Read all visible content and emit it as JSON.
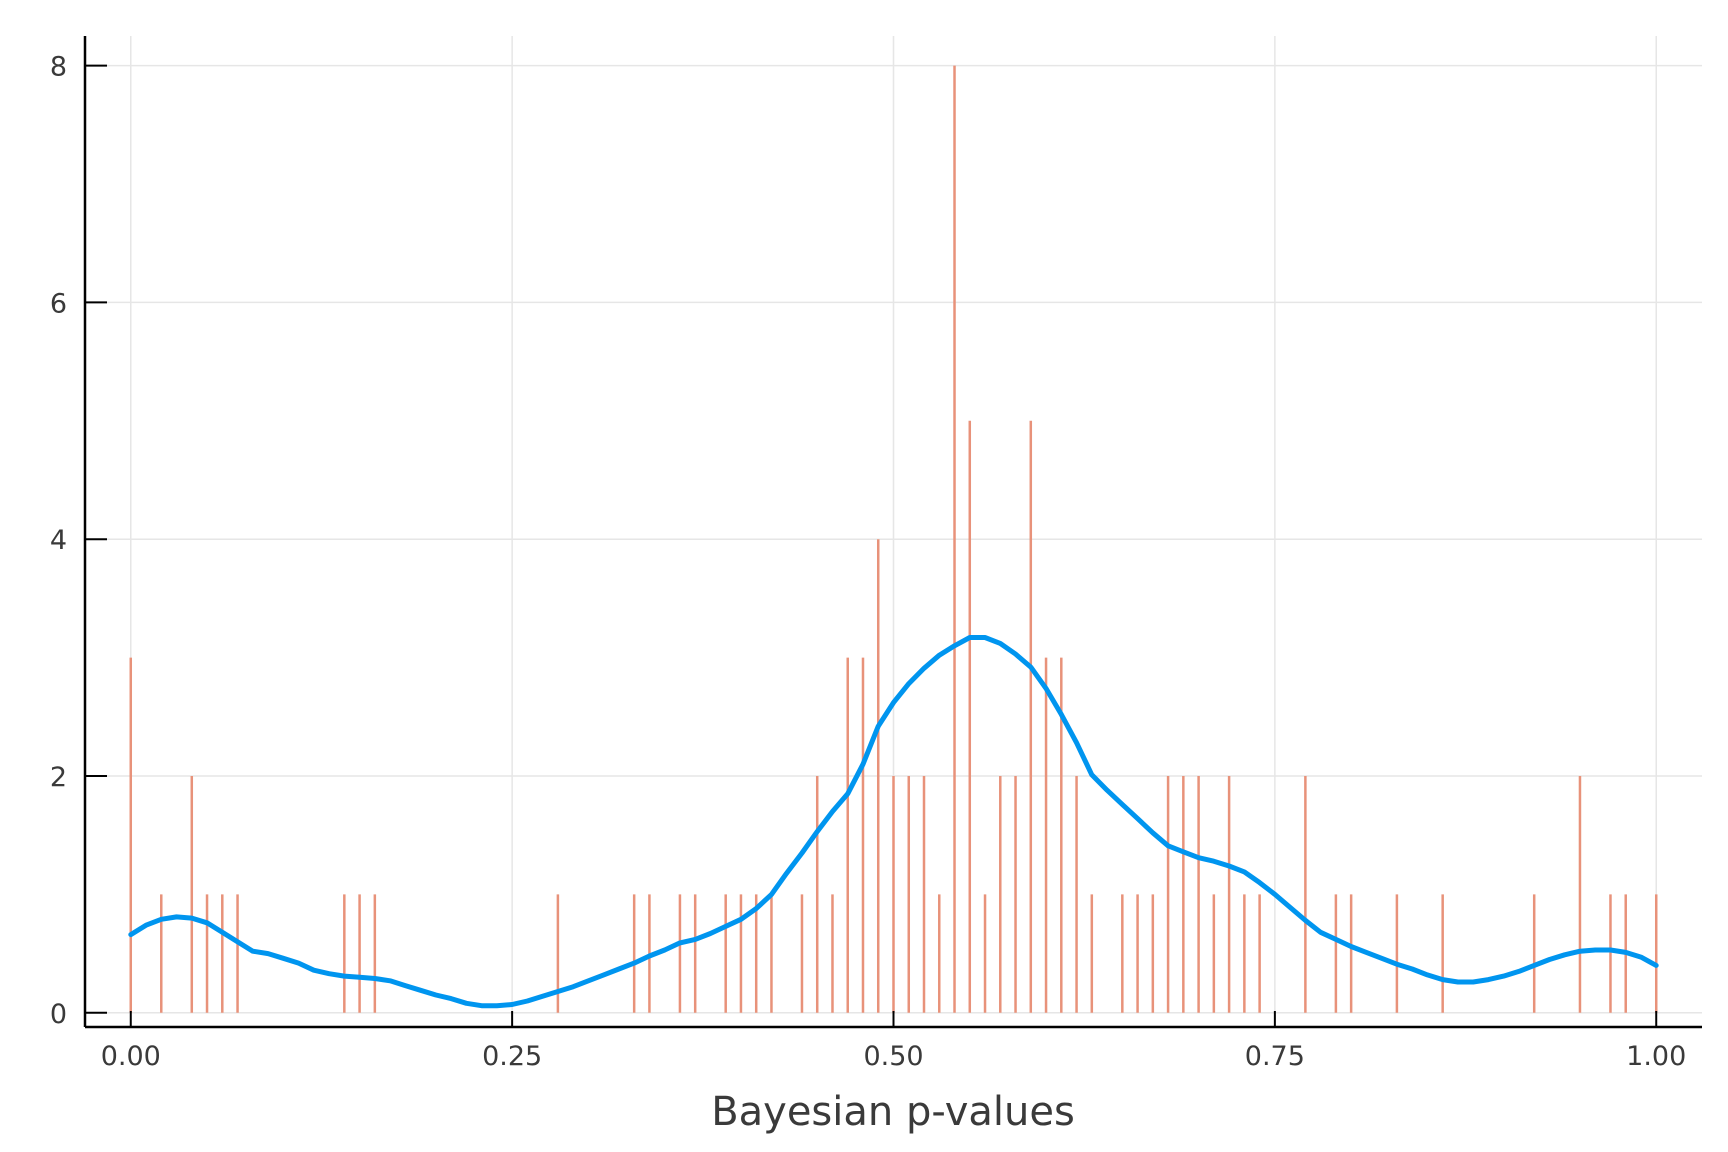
{
  "chart_data": {
    "type": "bar",
    "xlabel": "Bayesian p-values",
    "ylabel": "",
    "xlim": [
      -0.03,
      1.03
    ],
    "ylim": [
      -0.12,
      8.25
    ],
    "grid": true,
    "x_ticks": [
      0.0,
      0.25,
      0.5,
      0.75,
      1.0
    ],
    "x_tick_labels": [
      "0.00",
      "0.25",
      "0.50",
      "0.75",
      "1.00"
    ],
    "y_ticks": [
      0,
      2,
      4,
      6,
      8
    ],
    "y_tick_labels": [
      "0",
      "2",
      "4",
      "6",
      "8"
    ],
    "colors": {
      "bars": "#e8927a",
      "density": "#0095ef",
      "grid": "#e6e6e6",
      "axis": "#000000"
    },
    "series": [
      {
        "kind": "sticks",
        "x": [
          0.0,
          0.02,
          0.04,
          0.05,
          0.06,
          0.07,
          0.14,
          0.15,
          0.16,
          0.28,
          0.33,
          0.34,
          0.36,
          0.37,
          0.39,
          0.4,
          0.41,
          0.42,
          0.44,
          0.45,
          0.46,
          0.47,
          0.48,
          0.49,
          0.5,
          0.51,
          0.52,
          0.53,
          0.54,
          0.55,
          0.56,
          0.57,
          0.58,
          0.59,
          0.6,
          0.61,
          0.62,
          0.63,
          0.65,
          0.66,
          0.67,
          0.68,
          0.69,
          0.7,
          0.71,
          0.72,
          0.73,
          0.74,
          0.77,
          0.79,
          0.8,
          0.83,
          0.86,
          0.92,
          0.95,
          0.97,
          0.98,
          1.0
        ],
        "values": [
          3,
          1,
          2,
          1,
          1,
          1,
          1,
          1,
          1,
          1,
          1,
          1,
          1,
          1,
          1,
          1,
          1,
          1,
          1,
          2,
          1,
          3,
          3,
          4,
          2,
          2,
          2,
          1,
          8,
          5,
          1,
          2,
          2,
          5,
          3,
          3,
          2,
          1,
          1,
          1,
          1,
          2,
          2,
          2,
          1,
          2,
          1,
          1,
          2,
          1,
          1,
          1,
          1,
          1,
          2,
          1,
          1,
          1
        ]
      },
      {
        "kind": "density",
        "x": [
          0.0,
          0.01,
          0.02,
          0.03,
          0.04,
          0.05,
          0.06,
          0.07,
          0.08,
          0.09,
          0.1,
          0.11,
          0.12,
          0.13,
          0.14,
          0.15,
          0.16,
          0.17,
          0.18,
          0.19,
          0.2,
          0.21,
          0.22,
          0.23,
          0.24,
          0.25,
          0.26,
          0.27,
          0.28,
          0.29,
          0.3,
          0.31,
          0.32,
          0.33,
          0.34,
          0.35,
          0.36,
          0.37,
          0.38,
          0.39,
          0.4,
          0.41,
          0.42,
          0.43,
          0.44,
          0.45,
          0.46,
          0.47,
          0.48,
          0.49,
          0.5,
          0.51,
          0.52,
          0.53,
          0.54,
          0.55,
          0.56,
          0.57,
          0.58,
          0.59,
          0.6,
          0.61,
          0.62,
          0.63,
          0.64,
          0.65,
          0.66,
          0.67,
          0.68,
          0.69,
          0.7,
          0.71,
          0.72,
          0.73,
          0.74,
          0.75,
          0.76,
          0.77,
          0.78,
          0.79,
          0.8,
          0.81,
          0.82,
          0.83,
          0.84,
          0.85,
          0.86,
          0.87,
          0.88,
          0.89,
          0.9,
          0.91,
          0.92,
          0.93,
          0.94,
          0.95,
          0.96,
          0.97,
          0.98,
          0.99,
          1.0
        ],
        "values": [
          0.66,
          0.74,
          0.79,
          0.81,
          0.8,
          0.76,
          0.68,
          0.6,
          0.52,
          0.5,
          0.46,
          0.42,
          0.36,
          0.33,
          0.31,
          0.3,
          0.29,
          0.27,
          0.23,
          0.19,
          0.15,
          0.12,
          0.08,
          0.06,
          0.06,
          0.07,
          0.1,
          0.14,
          0.18,
          0.22,
          0.27,
          0.32,
          0.37,
          0.42,
          0.48,
          0.53,
          0.59,
          0.62,
          0.67,
          0.73,
          0.79,
          0.88,
          1.0,
          1.18,
          1.35,
          1.53,
          1.7,
          1.85,
          2.1,
          2.42,
          2.62,
          2.78,
          2.91,
          3.02,
          3.1,
          3.17,
          3.17,
          3.12,
          3.03,
          2.92,
          2.74,
          2.52,
          2.28,
          2.01,
          1.88,
          1.76,
          1.64,
          1.52,
          1.41,
          1.36,
          1.31,
          1.28,
          1.24,
          1.19,
          1.1,
          1.0,
          0.89,
          0.78,
          0.68,
          0.62,
          0.56,
          0.51,
          0.46,
          0.41,
          0.37,
          0.32,
          0.28,
          0.26,
          0.26,
          0.28,
          0.31,
          0.35,
          0.4,
          0.45,
          0.49,
          0.52,
          0.53,
          0.53,
          0.51,
          0.47,
          0.4
        ]
      }
    ]
  }
}
